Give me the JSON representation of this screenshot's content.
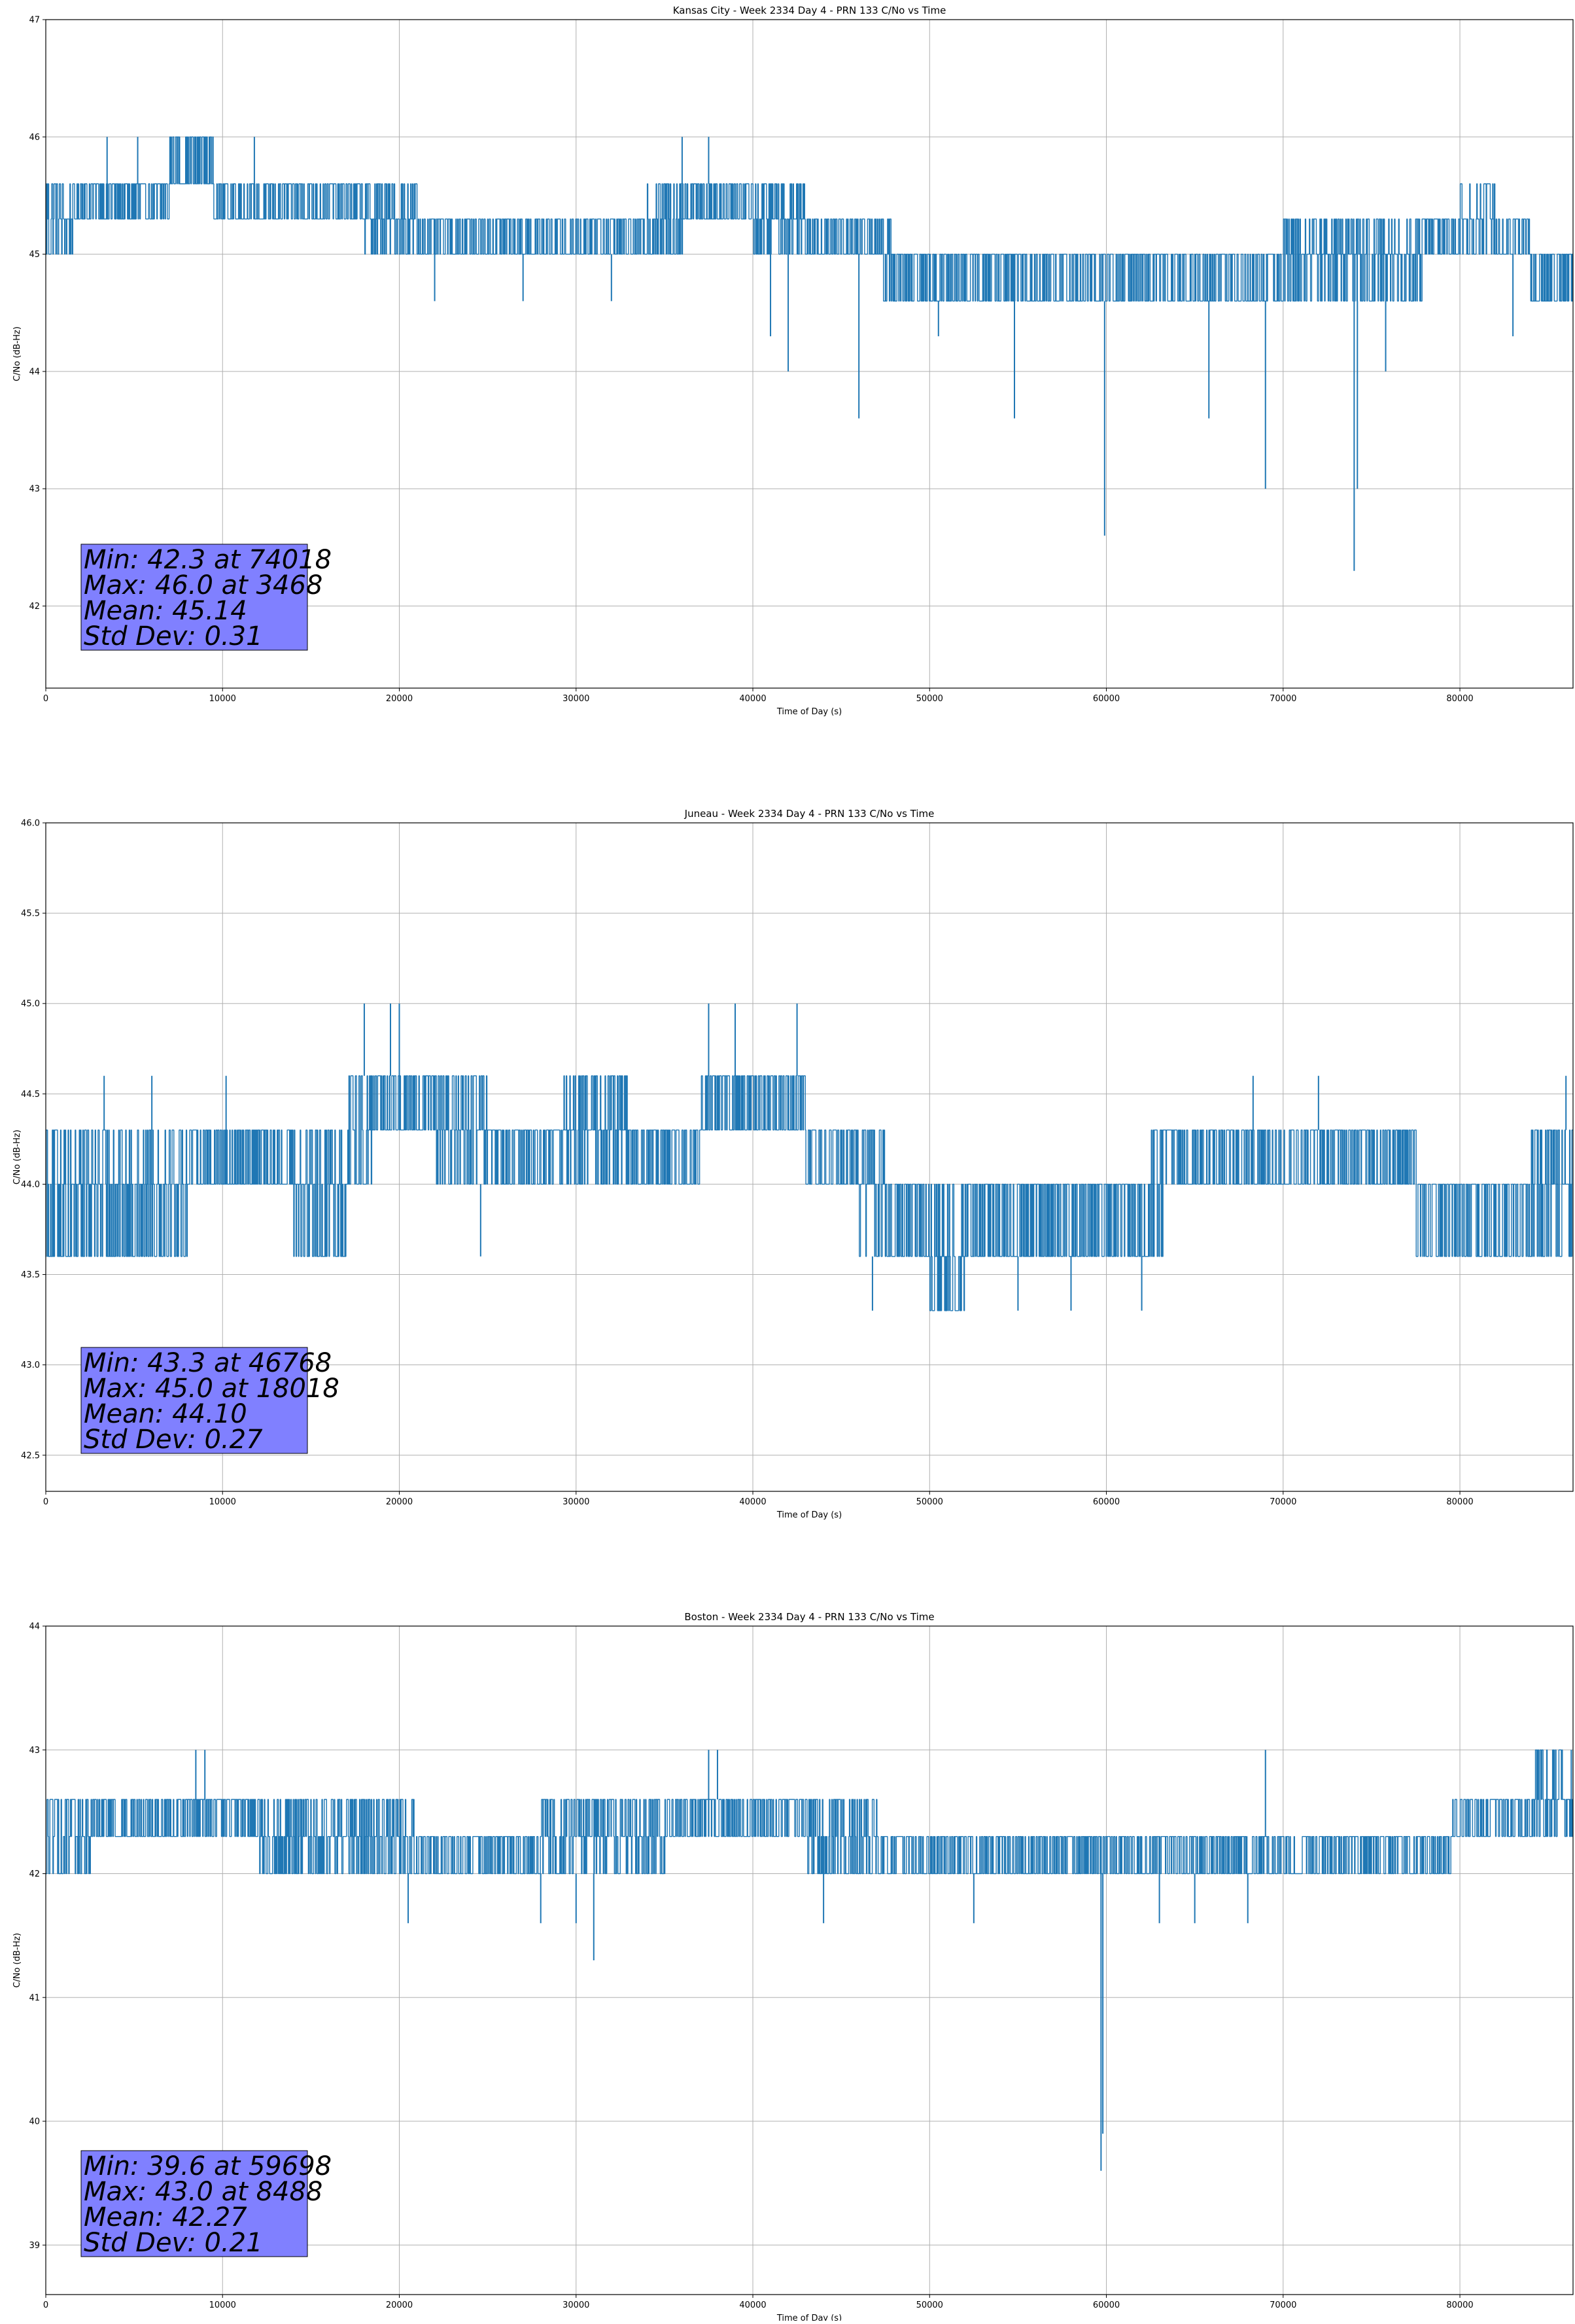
{
  "chart_data": [
    {
      "type": "line",
      "title": "Kansas City - Week 2334 Day 4 - PRN 133 C/No vs Time",
      "xlabel": "Time of Day (s)",
      "ylabel": "C/No (dB-Hz)",
      "xlim": [
        0,
        86400
      ],
      "ylim": [
        41.3,
        47
      ],
      "xticks": [
        0,
        10000,
        20000,
        30000,
        40000,
        50000,
        60000,
        70000,
        80000
      ],
      "yticks": [
        42,
        43,
        44,
        45,
        46,
        47
      ],
      "yfmt": 0,
      "grid": true,
      "color": "#1f77b4",
      "levels": [
        42.3,
        43.0,
        43.6,
        44.0,
        44.3,
        44.6,
        45.0,
        45.3,
        45.6,
        46.0
      ],
      "series": [
        {
          "x": [
            0,
            1500,
            4000,
            7000,
            8600,
            9500,
            12000,
            16000,
            18000,
            21000,
            23000,
            25000,
            28000,
            32000,
            34000,
            36000,
            38000,
            40000,
            43000,
            45000,
            47000,
            48000,
            50000,
            55000,
            60000,
            65000,
            70000,
            74000,
            78000,
            80000,
            82000,
            84000,
            86400
          ],
          "band": [
            [
              45.0,
              45.6
            ],
            [
              45.3,
              45.6
            ],
            [
              45.3,
              45.6
            ],
            [
              45.6,
              46.0
            ],
            [
              45.6,
              46.0
            ],
            [
              45.3,
              45.6
            ],
            [
              45.3,
              45.6
            ],
            [
              45.3,
              45.6
            ],
            [
              45.0,
              45.6
            ],
            [
              45.0,
              45.3
            ],
            [
              45.0,
              45.3
            ],
            [
              45.0,
              45.3
            ],
            [
              45.0,
              45.3
            ],
            [
              45.0,
              45.3
            ],
            [
              45.0,
              45.6
            ],
            [
              45.3,
              45.6
            ],
            [
              45.3,
              45.6
            ],
            [
              45.0,
              45.6
            ],
            [
              45.0,
              45.3
            ],
            [
              45.0,
              45.3
            ],
            [
              44.6,
              45.3
            ],
            [
              44.6,
              45.0
            ],
            [
              44.6,
              45.0
            ],
            [
              44.6,
              45.0
            ],
            [
              44.6,
              45.0
            ],
            [
              44.6,
              45.0
            ],
            [
              44.6,
              45.3
            ],
            [
              44.6,
              45.3
            ],
            [
              45.0,
              45.3
            ],
            [
              45.0,
              45.6
            ],
            [
              45.0,
              45.3
            ],
            [
              44.6,
              45.0
            ],
            [
              44.6,
              45.0
            ]
          ]
        }
      ],
      "spikes": [
        [
          3468,
          46.0
        ],
        [
          5200,
          46.0
        ],
        [
          11800,
          46.0
        ],
        [
          22000,
          44.6
        ],
        [
          27000,
          44.6
        ],
        [
          32000,
          44.6
        ],
        [
          36000,
          46.0
        ],
        [
          37500,
          46.0
        ],
        [
          41000,
          44.3
        ],
        [
          42000,
          44.0
        ],
        [
          46000,
          43.6
        ],
        [
          50500,
          44.3
        ],
        [
          54800,
          43.6
        ],
        [
          59900,
          42.6
        ],
        [
          65800,
          43.6
        ],
        [
          69000,
          43.0
        ],
        [
          74018,
          42.3
        ],
        [
          74200,
          43.0
        ],
        [
          75800,
          44.0
        ],
        [
          83000,
          44.3
        ]
      ],
      "stats_box": {
        "lines": [
          "Min: 42.3 at 74018",
          "Max: 46.0 at 3468",
          "Mean: 45.14",
          "Std Dev: 0.31"
        ]
      }
    },
    {
      "type": "line",
      "title": "Juneau - Week 2334 Day 4 - PRN 133 C/No vs Time",
      "xlabel": "Time of Day (s)",
      "ylabel": "C/No (dB-Hz)",
      "xlim": [
        0,
        86400
      ],
      "ylim": [
        42.3,
        46.0
      ],
      "xticks": [
        0,
        10000,
        20000,
        30000,
        40000,
        50000,
        60000,
        70000,
        80000
      ],
      "yticks": [
        42.5,
        43.0,
        43.5,
        44.0,
        44.5,
        45.0,
        45.5,
        46.0
      ],
      "yfmt": 1,
      "grid": true,
      "color": "#1f77b4",
      "levels": [
        43.3,
        43.6,
        44.0,
        44.3,
        44.6,
        45.0
      ],
      "series": [
        {
          "x": [
            0,
            3000,
            8000,
            14000,
            17000,
            18500,
            22000,
            25000,
            29000,
            33000,
            37000,
            40000,
            43000,
            46000,
            47500,
            50000,
            52000,
            58000,
            62500,
            63500,
            68000,
            74000,
            77500,
            80000,
            84000,
            86400
          ],
          "band": [
            [
              43.6,
              44.3
            ],
            [
              43.6,
              44.3
            ],
            [
              44.0,
              44.3
            ],
            [
              43.6,
              44.3
            ],
            [
              44.0,
              44.6
            ],
            [
              44.3,
              44.6
            ],
            [
              44.0,
              44.6
            ],
            [
              44.0,
              44.3
            ],
            [
              44.0,
              44.6
            ],
            [
              44.0,
              44.3
            ],
            [
              44.3,
              44.6
            ],
            [
              44.3,
              44.6
            ],
            [
              44.0,
              44.3
            ],
            [
              43.6,
              44.3
            ],
            [
              43.6,
              44.0
            ],
            [
              43.3,
              44.0
            ],
            [
              43.6,
              44.0
            ],
            [
              43.6,
              44.0
            ],
            [
              43.6,
              44.3
            ],
            [
              44.0,
              44.3
            ],
            [
              44.0,
              44.3
            ],
            [
              44.0,
              44.3
            ],
            [
              43.6,
              44.0
            ],
            [
              43.6,
              44.0
            ],
            [
              43.6,
              44.3
            ],
            [
              44.0,
              44.3
            ]
          ]
        }
      ],
      "spikes": [
        [
          3300,
          44.6
        ],
        [
          6000,
          44.6
        ],
        [
          10200,
          44.6
        ],
        [
          18018,
          45.0
        ],
        [
          19500,
          45.0
        ],
        [
          20000,
          45.0
        ],
        [
          37500,
          45.0
        ],
        [
          39000,
          45.0
        ],
        [
          42500,
          45.0
        ],
        [
          24600,
          43.6
        ],
        [
          46768,
          43.3
        ],
        [
          50500,
          43.3
        ],
        [
          55000,
          43.3
        ],
        [
          58000,
          43.3
        ],
        [
          62000,
          43.3
        ],
        [
          68300,
          44.6
        ],
        [
          72000,
          44.6
        ],
        [
          86000,
          44.6
        ]
      ],
      "stats_box": {
        "lines": [
          "Min: 43.3 at 46768",
          "Max: 45.0 at 18018",
          "Mean: 44.10",
          "Std Dev: 0.27"
        ]
      }
    },
    {
      "type": "line",
      "title": "Boston - Week 2334 Day 4 - PRN 133 C/No vs Time",
      "xlabel": "Time of Day (s)",
      "ylabel": "C/No (dB-Hz)",
      "xlim": [
        0,
        86400
      ],
      "ylim": [
        38.6,
        44
      ],
      "xticks": [
        0,
        10000,
        20000,
        30000,
        40000,
        50000,
        60000,
        70000,
        80000
      ],
      "yticks": [
        39,
        40,
        41,
        42,
        43,
        44
      ],
      "yfmt": 0,
      "grid": true,
      "color": "#1f77b4",
      "levels": [
        39.6,
        41.3,
        41.6,
        42.0,
        42.3,
        42.6,
        43.0
      ],
      "series": [
        {
          "x": [
            0,
            2500,
            8000,
            12000,
            17000,
            21000,
            24000,
            28000,
            32000,
            35000,
            40000,
            43000,
            47000,
            50000,
            55000,
            60000,
            65000,
            70000,
            75000,
            79500,
            81000,
            84000,
            86400
          ],
          "band": [
            [
              42.0,
              42.6
            ],
            [
              42.3,
              42.6
            ],
            [
              42.3,
              42.6
            ],
            [
              42.0,
              42.6
            ],
            [
              42.0,
              42.6
            ],
            [
              42.0,
              42.3
            ],
            [
              42.0,
              42.3
            ],
            [
              42.0,
              42.6
            ],
            [
              42.0,
              42.6
            ],
            [
              42.3,
              42.6
            ],
            [
              42.3,
              42.6
            ],
            [
              42.0,
              42.6
            ],
            [
              42.0,
              42.3
            ],
            [
              42.0,
              42.3
            ],
            [
              42.0,
              42.3
            ],
            [
              42.0,
              42.3
            ],
            [
              42.0,
              42.3
            ],
            [
              42.0,
              42.3
            ],
            [
              42.0,
              42.3
            ],
            [
              42.3,
              42.6
            ],
            [
              42.3,
              42.6
            ],
            [
              42.3,
              43.0
            ],
            [
              42.3,
              42.6
            ]
          ]
        }
      ],
      "spikes": [
        [
          8488,
          43.0
        ],
        [
          9000,
          43.0
        ],
        [
          37500,
          43.0
        ],
        [
          38000,
          43.0
        ],
        [
          69000,
          43.0
        ],
        [
          86300,
          43.0
        ],
        [
          20500,
          41.6
        ],
        [
          28000,
          41.6
        ],
        [
          30000,
          41.6
        ],
        [
          31000,
          41.3
        ],
        [
          44000,
          41.6
        ],
        [
          52500,
          41.6
        ],
        [
          59698,
          39.6
        ],
        [
          59800,
          39.9
        ],
        [
          63000,
          41.6
        ],
        [
          65000,
          41.6
        ],
        [
          68000,
          41.6
        ]
      ],
      "stats_box": {
        "lines": [
          "Min: 39.6 at 59698",
          "Max: 43.0 at 8488",
          "Mean: 42.27",
          "Std Dev: 0.21"
        ]
      }
    }
  ]
}
